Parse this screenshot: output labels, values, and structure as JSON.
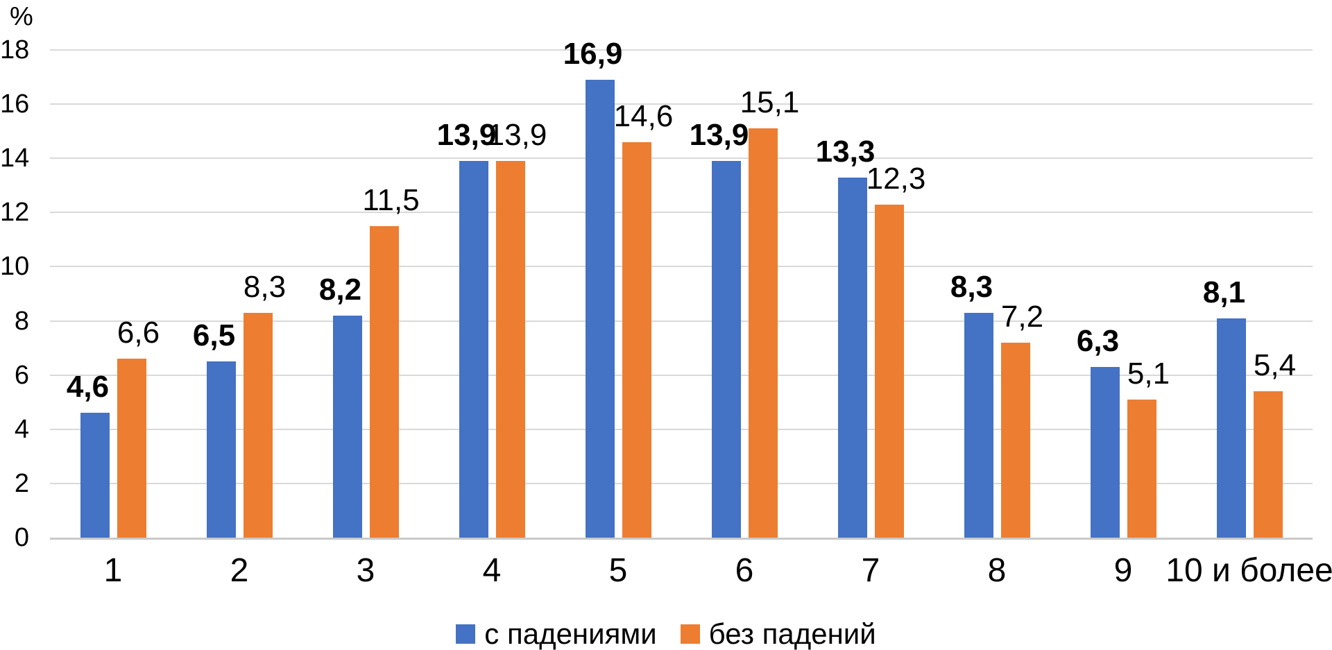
{
  "chart_data": {
    "type": "bar",
    "title": "",
    "ylabel": "%",
    "xlabel": "",
    "categories": [
      "1",
      "2",
      "3",
      "4",
      "5",
      "6",
      "7",
      "8",
      "9",
      "10 и более"
    ],
    "series": [
      {
        "name": "с падениями",
        "color": "#4472C4",
        "values": [
          4.6,
          6.5,
          8.2,
          13.9,
          16.9,
          13.9,
          13.3,
          8.3,
          6.3,
          8.1
        ],
        "labels": [
          "4,6",
          "6,5",
          "8,2",
          "13,9",
          "16,9",
          "13,9",
          "13,3",
          "8,3",
          "6,3",
          "8,1"
        ],
        "labels_bold": true
      },
      {
        "name": "без падений",
        "color": "#ED7D31",
        "values": [
          6.6,
          8.3,
          11.5,
          13.9,
          14.6,
          15.1,
          12.3,
          7.2,
          5.1,
          5.4
        ],
        "labels": [
          "6,6",
          "8,3",
          "11,5",
          "13,9",
          "14,6",
          "15,1",
          "12,3",
          "7,2",
          "5,1",
          "5,4"
        ],
        "labels_bold": false
      }
    ],
    "ylim": [
      0,
      18
    ],
    "ytick_values": [
      0,
      2,
      4,
      6,
      8,
      10,
      12,
      14,
      16,
      18
    ],
    "ytick_labels": [
      "0",
      "2",
      "4",
      "6",
      "8",
      "10",
      "12",
      "14",
      "16",
      "18"
    ],
    "grid": true,
    "gridline_color": "#D9D9D9",
    "axis_line_color": "#C9C9C9",
    "legend_position": "bottom",
    "decimal_separator": ","
  }
}
